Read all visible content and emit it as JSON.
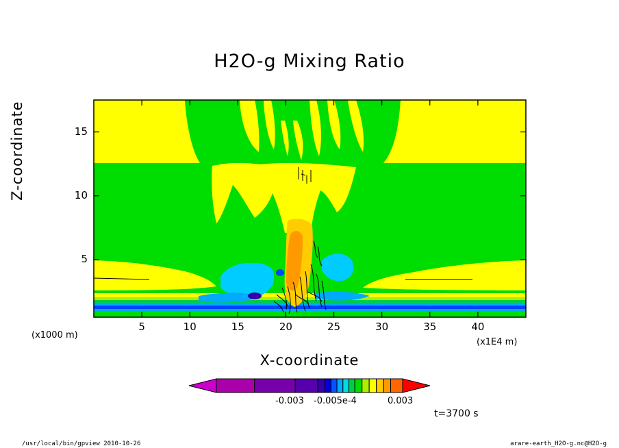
{
  "chart_data": {
    "type": "heatmap",
    "title": "H2O-g Mixing Ratio",
    "xlabel": "X-coordinate",
    "ylabel": "Z-coordinate",
    "x_unit": "(x1000 m)",
    "x_multiplier": "(x1E4 m)",
    "xlim": [
      0,
      45
    ],
    "ylim": [
      0.5,
      17.5
    ],
    "x_ticks": [
      "5",
      "10",
      "15",
      "20",
      "25",
      "30",
      "35",
      "40"
    ],
    "x_tick_values": [
      5,
      10,
      15,
      20,
      25,
      30,
      35,
      40
    ],
    "y_ticks": [
      "5",
      "10",
      "15"
    ],
    "y_tick_values": [
      5,
      10,
      15
    ],
    "colorbar": {
      "colors": [
        "#cc00cc",
        "#aa00aa",
        "#7700aa",
        "#5500aa",
        "#3300aa",
        "#0000dd",
        "#0055ff",
        "#00aaff",
        "#00dddd",
        "#00cc44",
        "#00dd00",
        "#aaee00",
        "#ffff00",
        "#ffcc00",
        "#ff9900",
        "#ff6600",
        "#ff0000"
      ],
      "labels": [
        "-0.003",
        "-0.005e-4",
        "0.003"
      ]
    },
    "regions_description_colors": {
      "background": "#00dd00",
      "moist": "#ffff00",
      "core": "#ffaa00",
      "dry": "#00ccff",
      "dry_strong": "#0044ff"
    }
  },
  "time_label": "t=3700 s",
  "footer": {
    "left": "/usr/local/bin/gpview  2010-10-26",
    "right": "arare-earth_H2O-g.nc@H2O-g"
  }
}
